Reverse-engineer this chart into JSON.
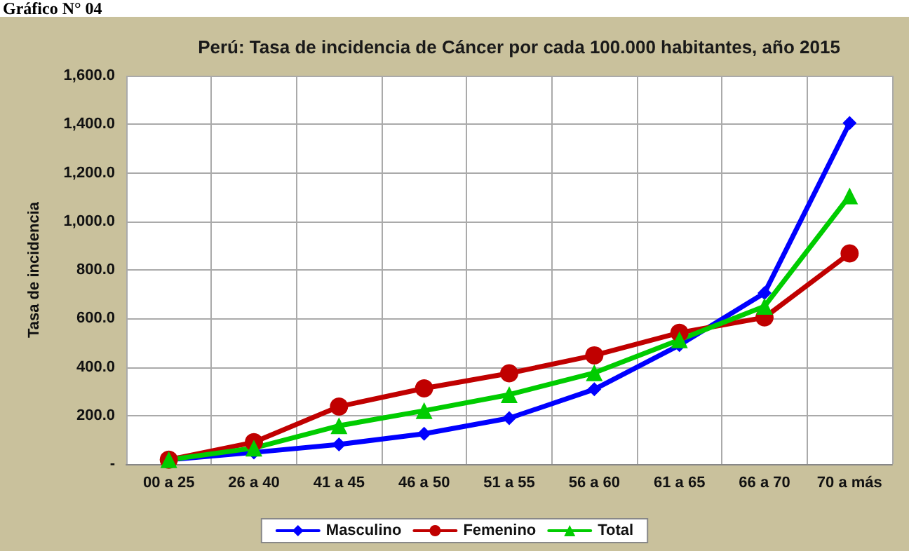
{
  "chart_data": {
    "type": "line",
    "title": "Perú: Tasa de incidencia de Cáncer por cada 100.000 habitantes, año 2015",
    "ylabel": "Tasa de incidencia",
    "annotations": [
      "Gráfico N° 04"
    ],
    "categories": [
      "00 a 25",
      "26 a 40",
      "41 a 45",
      "46 a 50",
      "51 a 55",
      "56 a 60",
      "61 a 65",
      "66 a 70",
      "70 a más"
    ],
    "series": [
      {
        "name": "Masculino",
        "color": "#0000ff",
        "marker": "diamond",
        "values": [
          18,
          48,
          81,
          125,
          189,
          308,
          490,
          705,
          1405
        ]
      },
      {
        "name": "Femenino",
        "color": "#c00000",
        "marker": "circle",
        "values": [
          18,
          90,
          237,
          312,
          374,
          448,
          541,
          604,
          868
        ]
      },
      {
        "name": "Total",
        "color": "#00cc00",
        "marker": "triangle",
        "values": [
          18,
          66,
          158,
          220,
          286,
          376,
          512,
          650,
          1105
        ]
      }
    ],
    "ylim": [
      0,
      1600
    ],
    "yticks": [
      {
        "value": 0,
        "label": "-"
      },
      {
        "value": 200,
        "label": "200.0"
      },
      {
        "value": 400,
        "label": "400.0"
      },
      {
        "value": 600,
        "label": "600.0"
      },
      {
        "value": 800,
        "label": "800.0"
      },
      {
        "value": 1000,
        "label": "1,000.0"
      },
      {
        "value": 1200,
        "label": "1,200.0"
      },
      {
        "value": 1400,
        "label": "1,400.0"
      },
      {
        "value": 1600,
        "label": "1,600.0"
      }
    ],
    "grid": true,
    "legend": "bottom",
    "line_style": "solid"
  }
}
